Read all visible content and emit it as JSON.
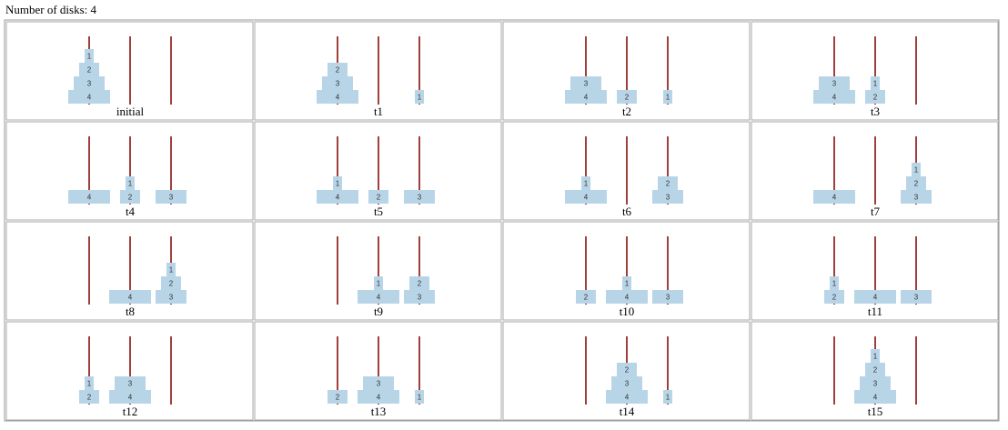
{
  "header": {
    "title": "Number of disks: 4"
  },
  "states": [
    {
      "label": "initial",
      "pegs": [
        [
          4,
          3,
          2,
          1
        ],
        [],
        []
      ]
    },
    {
      "label": "t1",
      "pegs": [
        [
          4,
          3,
          2
        ],
        [],
        [
          1
        ]
      ]
    },
    {
      "label": "t2",
      "pegs": [
        [
          4,
          3
        ],
        [
          2
        ],
        [
          1
        ]
      ]
    },
    {
      "label": "t3",
      "pegs": [
        [
          4,
          3
        ],
        [
          2,
          1
        ],
        []
      ]
    },
    {
      "label": "t4",
      "pegs": [
        [
          4
        ],
        [
          2,
          1
        ],
        [
          3
        ]
      ]
    },
    {
      "label": "t5",
      "pegs": [
        [
          4,
          1
        ],
        [
          2
        ],
        [
          3
        ]
      ]
    },
    {
      "label": "t6",
      "pegs": [
        [
          4,
          1
        ],
        [],
        [
          3,
          2
        ]
      ]
    },
    {
      "label": "t7",
      "pegs": [
        [
          4
        ],
        [],
        [
          3,
          2,
          1
        ]
      ]
    },
    {
      "label": "t8",
      "pegs": [
        [],
        [
          4
        ],
        [
          3,
          2,
          1
        ]
      ]
    },
    {
      "label": "t9",
      "pegs": [
        [],
        [
          4,
          1
        ],
        [
          3,
          2
        ]
      ]
    },
    {
      "label": "t10",
      "pegs": [
        [
          2
        ],
        [
          4,
          1
        ],
        [
          3
        ]
      ]
    },
    {
      "label": "t11",
      "pegs": [
        [
          2,
          1
        ],
        [
          4
        ],
        [
          3
        ]
      ]
    },
    {
      "label": "t12",
      "pegs": [
        [
          2,
          1
        ],
        [
          4,
          3
        ],
        []
      ]
    },
    {
      "label": "t13",
      "pegs": [
        [
          2
        ],
        [
          4,
          3
        ],
        [
          1
        ]
      ]
    },
    {
      "label": "t14",
      "pegs": [
        [],
        [
          4,
          3,
          2
        ],
        [
          1
        ]
      ]
    },
    {
      "label": "t15",
      "pegs": [
        [],
        [
          4,
          3,
          2,
          1
        ],
        []
      ]
    }
  ]
}
